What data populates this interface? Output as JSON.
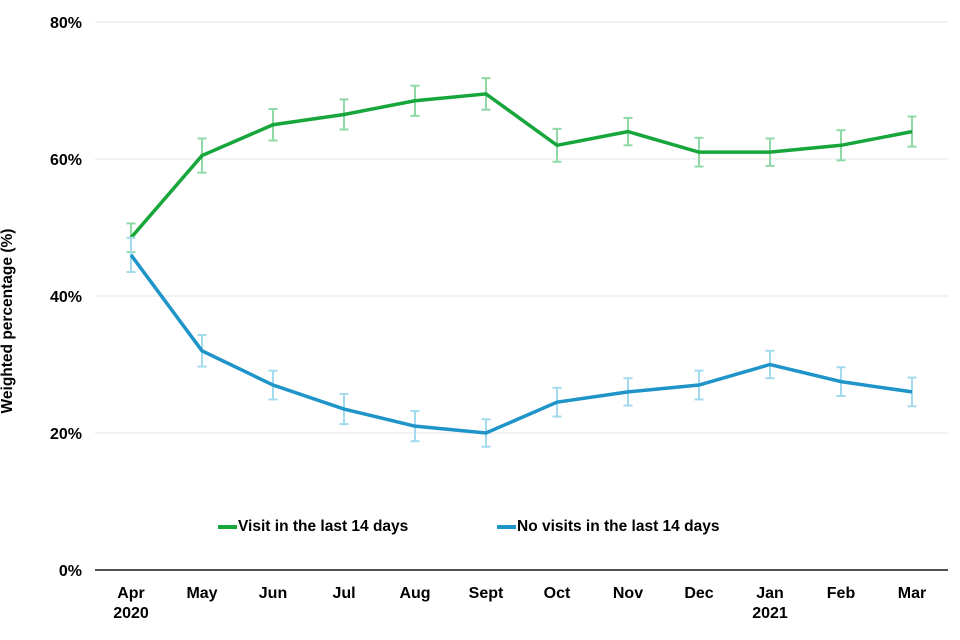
{
  "chart_data": {
    "type": "line",
    "title": "",
    "xlabel": "",
    "ylabel": "Weighted percentage (%)",
    "ylim": [
      0,
      80
    ],
    "yticks": [
      0,
      20,
      40,
      60,
      80
    ],
    "ytick_labels": [
      "0%",
      "20%",
      "40%",
      "60%",
      "80%"
    ],
    "grid": true,
    "legend_position": "bottom-inside",
    "categories": [
      "Apr",
      "May",
      "Jun",
      "Jul",
      "Aug",
      "Sept",
      "Oct",
      "Nov",
      "Dec",
      "Jan",
      "Feb",
      "Mar"
    ],
    "category_year_labels": {
      "0": "2020",
      "9": "2021"
    },
    "series": [
      {
        "id": "visit",
        "name": "Visit in the last 14 days",
        "color": "#17a63b",
        "error_color": "#8fd9a6",
        "values": [
          48.5,
          60.5,
          65,
          66.5,
          68.5,
          69.5,
          62,
          64,
          61,
          61,
          62,
          64
        ],
        "errors": [
          2.1,
          2.5,
          2.3,
          2.2,
          2.2,
          2.3,
          2.4,
          2.0,
          2.1,
          2.0,
          2.2,
          2.2
        ]
      },
      {
        "id": "no-visits",
        "name": "No visits in the last 14 days",
        "color": "#1e94c8",
        "error_color": "#a3daee",
        "values": [
          46,
          32,
          27,
          23.5,
          21,
          20,
          24.5,
          26,
          27,
          30,
          27.5,
          26
        ],
        "errors": [
          2.5,
          2.3,
          2.1,
          2.2,
          2.2,
          2.0,
          2.1,
          2.0,
          2.1,
          2.0,
          2.1,
          2.1
        ]
      }
    ]
  }
}
